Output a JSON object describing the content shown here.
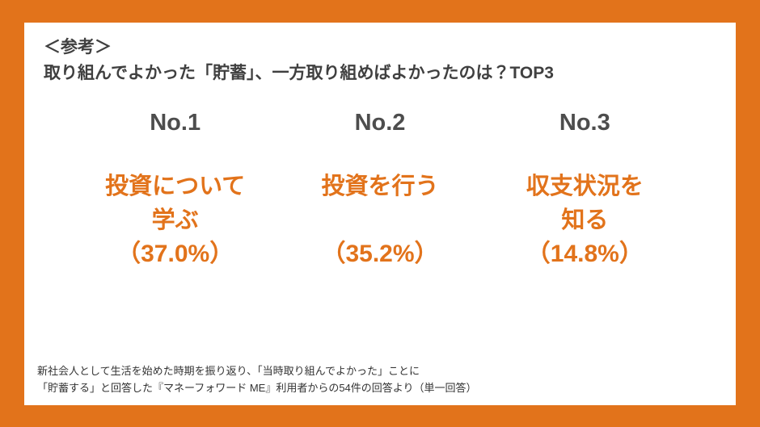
{
  "theme": {
    "accent": "#E2731B",
    "text_dark": "#404040",
    "rank_gray": "#4D4D4D",
    "note_gray": "#333333",
    "card_bg": "#FFFFFF"
  },
  "header": {
    "title": "＜参考＞",
    "subtitle": "取り組んでよかった「貯蓄」、一方取り組めばよかったのは？TOP3"
  },
  "items": [
    {
      "rank": "No.1",
      "name": "投資について\n学ぶ",
      "value": "（37.0%）"
    },
    {
      "rank": "No.2",
      "name": "投資を行う",
      "value": "（35.2%）"
    },
    {
      "rank": "No.3",
      "name": "収支状況を\n知る",
      "value": "（14.8%）"
    }
  ],
  "footnote": "新社会人として生活を始めた時期を振り返り、「当時取り組んでよかった」ことに\n「貯蓄する」と回答した『マネーフォワード ME』利用者からの54件の回答より（単一回答）",
  "chart_data": {
    "type": "bar",
    "title": "取り組んでよかった「貯蓄」、一方取り組めばよかったのは？TOP3",
    "categories": [
      "投資について学ぶ",
      "投資を行う",
      "収支状況を知る"
    ],
    "values": [
      37.0,
      35.2,
      14.8
    ],
    "unit": "%",
    "ranks": [
      "No.1",
      "No.2",
      "No.3"
    ],
    "sample_size_note": "54件の回答（単一回答）"
  }
}
